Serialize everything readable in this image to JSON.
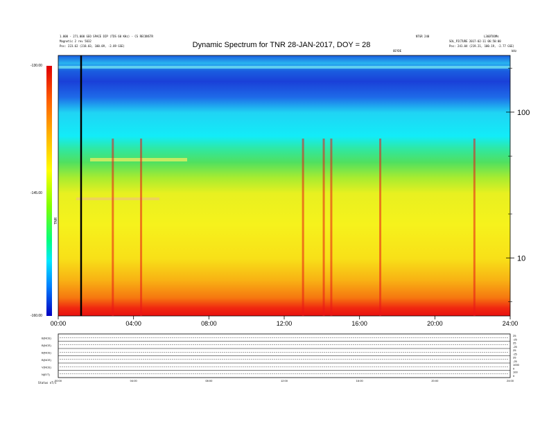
{
  "header": {
    "title": "Dynamic Spectrum for TNR 28-JAN-2017, DOY = 28",
    "left_line1": "1.000 - 271.000 GEO SPACE DIP (TDS 60 KHz) - CS RECONSTR",
    "left_line2": "Magnetic 2 rev 5032",
    "left_line3": "Pos:   223.62 (218.03, 100.09, -2.89 GSE)",
    "right_line1": "NTGR 240",
    "right_line2": "L360TOOMs",
    "right_line3": "SOL_PICTURE 2017-02-11 06:50:00",
    "right_line4": "Pos:   241.04 (219.21, 100.19, -2.77 GSE)",
    "center_note": "OEYDE",
    "right_axis_unit": "kHz"
  },
  "colorbar": {
    "ticks": [
      "-130.00",
      "-145.00",
      "-160.00"
    ],
    "label": "TNR"
  },
  "chart_data": [
    {
      "type": "heatmap",
      "title": "Dynamic Spectrum for TNR 28-JAN-2017, DOY = 28",
      "xlabel": "",
      "ylabel": "kHz",
      "x_ticks": [
        "00:00",
        "04:00",
        "08:00",
        "12:00",
        "16:00",
        "20:00",
        "24:00"
      ],
      "xlim_hours": [
        0,
        24
      ],
      "y_scale": "log",
      "y_ticks": [
        10,
        100
      ],
      "ylim": [
        4,
        245
      ],
      "color_scale": {
        "min": -160,
        "max": -130,
        "ticks": [
          -130,
          -145,
          -160
        ],
        "label": "TNR"
      },
      "bands": [
        {
          "freq_range_khz": [
            180,
            245
          ],
          "level": "blue with cyan line",
          "color": "#1e5fe0"
        },
        {
          "freq_range_khz": [
            70,
            180
          ],
          "level": "cyan",
          "color": "#10e8f4"
        },
        {
          "freq_range_khz": [
            35,
            70
          ],
          "level": "green",
          "color": "#40e070"
        },
        {
          "freq_range_khz": [
            10,
            35
          ],
          "level": "yellow",
          "color": "#f4f020"
        },
        {
          "freq_range_khz": [
            5,
            10
          ],
          "level": "orange",
          "color": "#f4a010"
        },
        {
          "freq_range_khz": [
            4,
            5
          ],
          "level": "red",
          "color": "#f01010"
        }
      ],
      "bursts_hours": [
        2.9,
        4.4,
        13.0,
        14.1,
        14.5,
        17.1,
        22.1
      ],
      "marker_line_hours": 1.2
    },
    {
      "type": "line",
      "panels": [
        {
          "label": "B(NCE)",
          "range": [
            "25",
            "-25"
          ]
        },
        {
          "label": "B(NCE)",
          "range": [
            "25",
            "-25"
          ]
        },
        {
          "label": "B(NCE)",
          "range": [
            "25",
            "-25"
          ]
        },
        {
          "label": "B(NCE)",
          "range": [
            "25",
            "-25"
          ]
        },
        {
          "label": "V(NCE)",
          "range": [
            "1000",
            "0"
          ]
        },
        {
          "label": "N(E/T)",
          "range": [
            "100",
            "0"
          ]
        }
      ],
      "x_ticks": [
        "00:00",
        "04:00",
        "08:00",
        "12:00",
        "16:00",
        "20:00",
        "24:00"
      ],
      "footer_label": "Status   nT/s"
    }
  ]
}
